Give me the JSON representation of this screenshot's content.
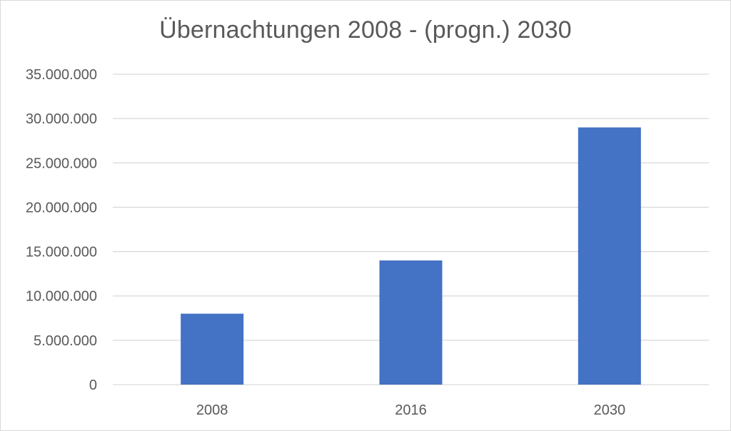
{
  "chart_data": {
    "type": "bar",
    "title": "Übernachtungen 2008 - (progn.) 2030",
    "categories": [
      "2008",
      "2016",
      "2030"
    ],
    "values": [
      8000000,
      14000000,
      29000000
    ],
    "ylim": [
      0,
      35000000
    ],
    "y_ticks": [
      0,
      5000000,
      10000000,
      15000000,
      20000000,
      25000000,
      30000000,
      35000000
    ],
    "y_tick_labels": [
      "0",
      "5.000.000",
      "10.000.000",
      "15.000.000",
      "20.000.000",
      "25.000.000",
      "30.000.000",
      "35.000.000"
    ],
    "grid": true,
    "legend": "none",
    "bar_color": "#4472C4",
    "grid_color": "#d9d9d9"
  }
}
